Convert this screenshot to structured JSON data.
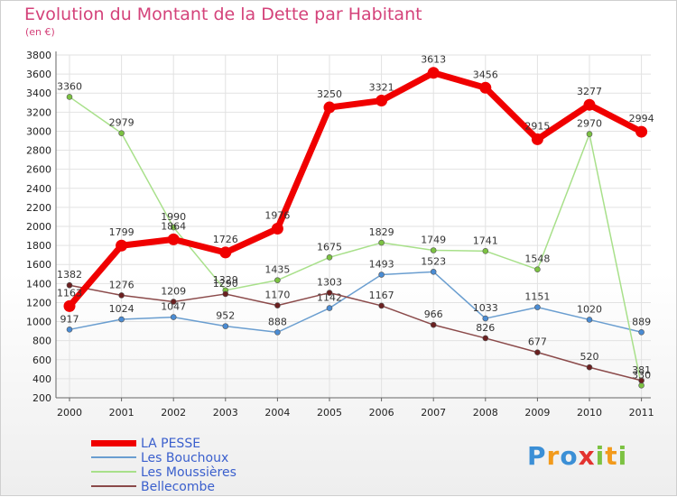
{
  "header": {
    "title": "Evolution du Montant de la Dette par Habitant",
    "subtitle": "(en €)"
  },
  "brand": {
    "letters": [
      "P",
      "r",
      "o",
      "x",
      "i",
      "t",
      "i"
    ],
    "colors": [
      "#3b8fd6",
      "#f29a1b",
      "#3b8fd6",
      "#e3322f",
      "#7cc242",
      "#f29a1b",
      "#7cc242"
    ]
  },
  "colors": {
    "title": "#d4427a",
    "legend_text": "#3a5fcd",
    "grid": "#e2e2e2",
    "axis": "#666666",
    "tick_text": "#222222"
  },
  "chart_data": {
    "type": "line",
    "title": "Evolution du Montant de la Dette par Habitant",
    "subtitle": "(en €)",
    "xlabel": "",
    "ylabel": "",
    "x": [
      "2000",
      "2001",
      "2002",
      "2003",
      "2004",
      "2005",
      "2006",
      "2007",
      "2008",
      "2009",
      "2010",
      "2011"
    ],
    "yticks": [
      200,
      400,
      600,
      800,
      1000,
      1200,
      1400,
      1600,
      1800,
      2000,
      2200,
      2400,
      2600,
      2800,
      3000,
      3200,
      3400,
      3600,
      3800
    ],
    "ylim": [
      200,
      3800
    ],
    "grid": true,
    "legend": "bottom-left",
    "series": [
      {
        "name": "Les Bouchoux",
        "color": "#6a9ed0",
        "marker": "#4a8cd4",
        "width": 1.5,
        "values": [
          917,
          1024,
          1047,
          952,
          888,
          1142,
          1493,
          1523,
          1033,
          1151,
          1020,
          889
        ],
        "labels": [
          "917",
          "1024",
          "1047",
          "952",
          "888",
          "1142",
          "1493",
          "1523",
          "1033",
          "1151",
          "1020",
          "889"
        ]
      },
      {
        "name": "Les Moussières",
        "color": "#a8e08a",
        "marker": "#7cc242",
        "width": 1.5,
        "values": [
          3360,
          2979,
          1990,
          1329,
          1435,
          1675,
          1829,
          1749,
          1741,
          1548,
          2970,
          330
        ],
        "labels": [
          "3360",
          "2979",
          "1990",
          "1329",
          "1435",
          "1675",
          "1829",
          "1749",
          "1741",
          "1548",
          "2970",
          "330"
        ]
      },
      {
        "name": "Bellecombe",
        "color": "#8b4a4a",
        "marker": "#6b2020",
        "width": 1.5,
        "values": [
          1382,
          1276,
          1209,
          1290,
          1170,
          1303,
          1167,
          966,
          826,
          677,
          520,
          381
        ],
        "labels": [
          "1382",
          "1276",
          "1209",
          "1290",
          "1170",
          "1303",
          "1167",
          "966",
          "826",
          "677",
          "520",
          "381"
        ]
      },
      {
        "name": "LA PESSE",
        "color": "#f00000",
        "marker": "#f00000",
        "width": 7,
        "values": [
          1163,
          1799,
          1864,
          1726,
          1976,
          3250,
          3321,
          3613,
          3456,
          2915,
          3277,
          2994
        ],
        "labels": [
          "1163",
          "1799",
          "1864",
          "1726",
          "1976",
          "3250",
          "3321",
          "3613",
          "3456",
          "2915",
          "3277",
          "2994"
        ]
      }
    ],
    "legend_order": [
      "LA PESSE",
      "Les Bouchoux",
      "Les Moussières",
      "Bellecombe"
    ]
  }
}
